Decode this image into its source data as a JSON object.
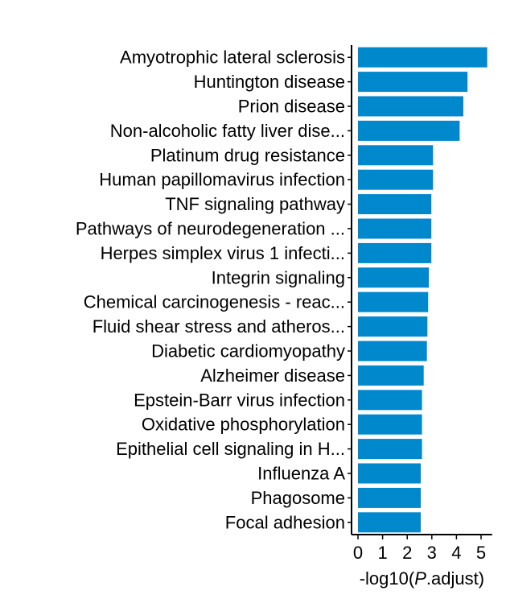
{
  "chart_data": {
    "type": "bar",
    "orientation": "horizontal",
    "categories": [
      "Amyotrophic lateral sclerosis",
      "Huntington disease",
      "Prion disease",
      "Non-alcoholic fatty liver dise...",
      "Platinum drug resistance",
      "Human papillomavirus infection",
      "TNF signaling pathway",
      "Pathways of neurodegeneration ...",
      "Herpes simplex virus 1 infecti...",
      "Integrin signaling",
      "Chemical carcinogenesis - reac...",
      "Fluid shear stress and atheros...",
      "Diabetic cardiomyopathy",
      "Alzheimer disease",
      "Epstein-Barr virus infection",
      "Oxidative phosphorylation",
      "Epithelial cell signaling in H...",
      "Influenza A",
      "Phagosome",
      "Focal adhesion"
    ],
    "values": [
      5.25,
      4.45,
      4.28,
      4.13,
      3.05,
      3.05,
      2.98,
      2.98,
      2.98,
      2.88,
      2.85,
      2.82,
      2.8,
      2.67,
      2.6,
      2.6,
      2.6,
      2.55,
      2.55,
      2.55
    ],
    "xlim": [
      0,
      5.45
    ],
    "xticks": [
      "0",
      "1",
      "2",
      "3",
      "4",
      "5"
    ],
    "xlabel_prefix": "-log10(",
    "xlabel_italic": "P",
    "xlabel_suffix": ".adjust)",
    "bar_color": "#0088cc",
    "axis_color": "#000000",
    "grid": false,
    "legend": "none"
  }
}
